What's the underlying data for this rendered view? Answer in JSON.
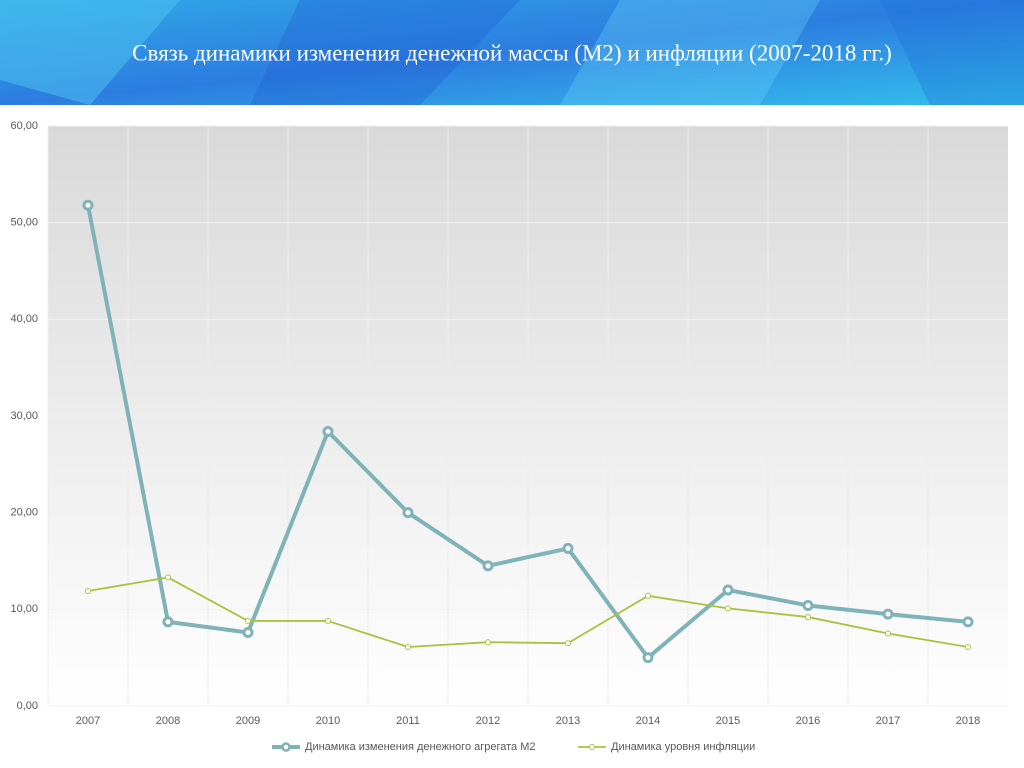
{
  "chart_data": {
    "type": "line",
    "title": "Связь динамики изменения денежной массы (М2) и инфляции (2007-2018 гг.)",
    "categories": [
      "2007",
      "2008",
      "2009",
      "2010",
      "2011",
      "2012",
      "2013",
      "2014",
      "2015",
      "2016",
      "2017",
      "2018"
    ],
    "series": [
      {
        "name": "Динамика изменения денежного агрегата М2",
        "color": "#7fb3b8",
        "values": [
          51.8,
          8.7,
          7.6,
          28.4,
          20.0,
          14.5,
          16.3,
          5.0,
          12.0,
          10.4,
          9.5,
          8.7
        ]
      },
      {
        "name": "Динамика уровня инфляции",
        "color": "#a9c23f",
        "values": [
          11.9,
          13.3,
          8.8,
          8.8,
          6.1,
          6.6,
          6.5,
          11.4,
          10.1,
          9.2,
          7.5,
          6.1
        ]
      }
    ],
    "ylim": [
      0,
      60
    ],
    "yticks": [
      {
        "value": 0,
        "label": "0,00"
      },
      {
        "value": 10,
        "label": "10,00"
      },
      {
        "value": 20,
        "label": "20,00"
      },
      {
        "value": 30,
        "label": "30,00"
      },
      {
        "value": 40,
        "label": "40,00"
      },
      {
        "value": 50,
        "label": "50,00"
      },
      {
        "value": 60,
        "label": "60,00"
      }
    ],
    "grid": true,
    "legend": "bottom"
  }
}
